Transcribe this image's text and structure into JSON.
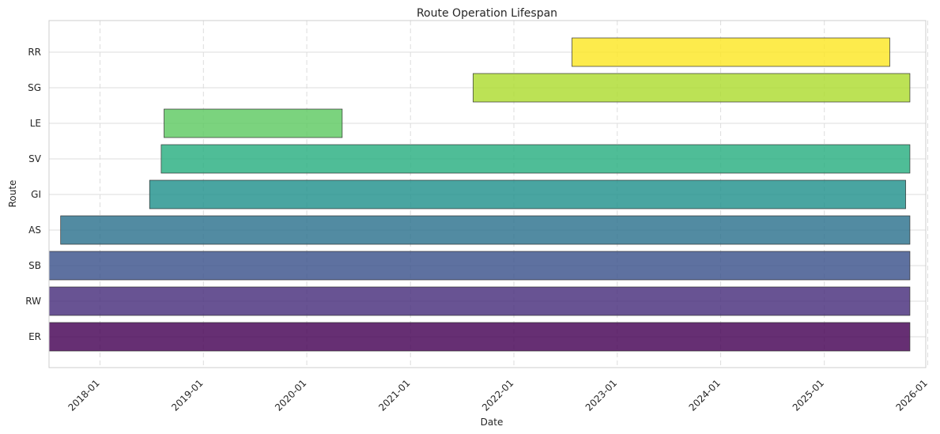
{
  "chart_data": {
    "type": "bar",
    "orientation": "horizontal",
    "title": "Route Operation Lifespan",
    "xlabel": "Date",
    "ylabel": "Route",
    "x_axis_type": "date",
    "xlim": [
      "2017-07-05",
      "2025-12-25"
    ],
    "x_ticks": [
      "2018-01",
      "2019-01",
      "2020-01",
      "2021-01",
      "2022-01",
      "2023-01",
      "2024-01",
      "2025-01",
      "2026-01"
    ],
    "x_grid": "dashed",
    "y_grid": "solid",
    "legend": "none",
    "categories": [
      "ER",
      "RW",
      "SB",
      "AS",
      "GI",
      "SV",
      "LE",
      "SG",
      "RR"
    ],
    "bars": [
      {
        "route": "ER",
        "start": "2017-07-05",
        "end": "2025-10-30",
        "color": "#440154"
      },
      {
        "route": "RW",
        "start": "2017-07-05",
        "end": "2025-10-30",
        "color": "#472d7b"
      },
      {
        "route": "SB",
        "start": "2017-07-05",
        "end": "2025-10-30",
        "color": "#3b528b"
      },
      {
        "route": "AS",
        "start": "2017-08-15",
        "end": "2025-10-30",
        "color": "#2c728e"
      },
      {
        "route": "GI",
        "start": "2018-06-25",
        "end": "2025-10-15",
        "color": "#21918c"
      },
      {
        "route": "SV",
        "start": "2018-08-05",
        "end": "2025-10-30",
        "color": "#28ae80"
      },
      {
        "route": "LE",
        "start": "2018-08-15",
        "end": "2020-05-05",
        "color": "#5ec962"
      },
      {
        "route": "SG",
        "start": "2021-08-10",
        "end": "2025-10-30",
        "color": "#addc30"
      },
      {
        "route": "RR",
        "start": "2022-07-25",
        "end": "2025-08-20",
        "color": "#fde725"
      }
    ]
  }
}
